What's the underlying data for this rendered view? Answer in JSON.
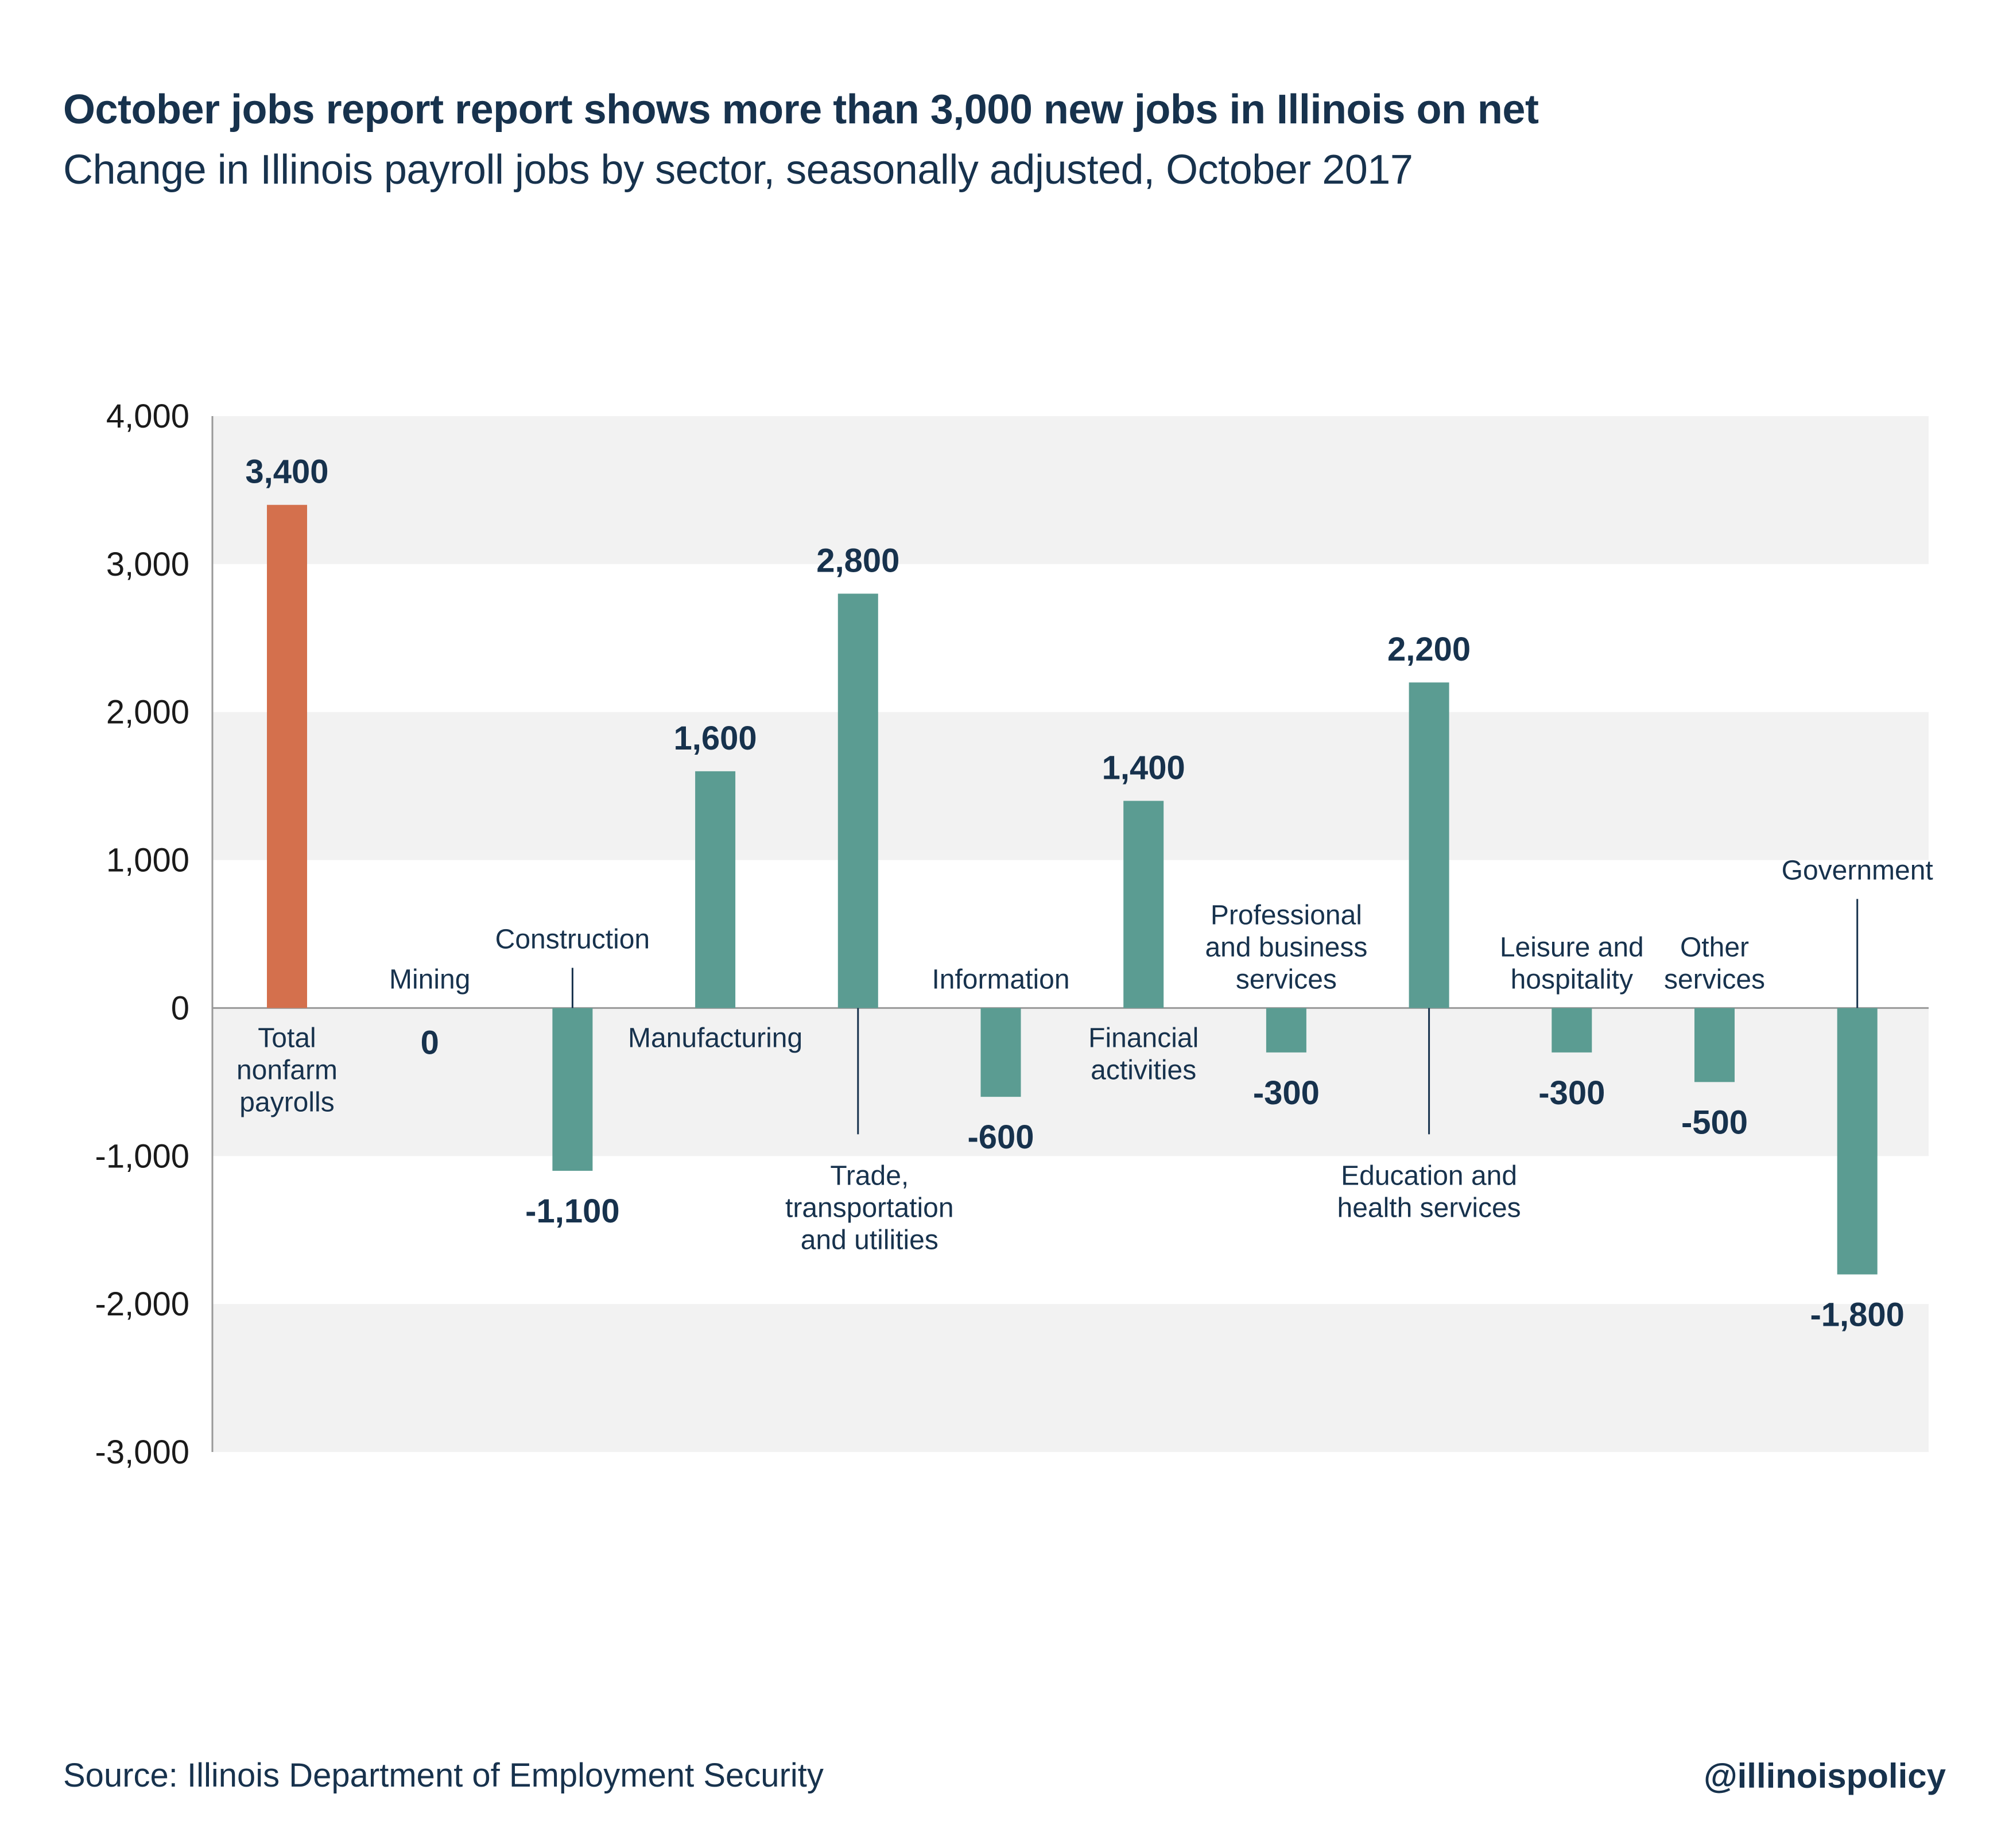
{
  "title": "October jobs report report shows more than 3,000 new jobs in Illinois on net",
  "subtitle": "Change in Illinois payroll jobs by sector, seasonally adjusted, October 2017",
  "source": "Source: Illinois Department of Employment Security",
  "handle": "@illinoispolicy",
  "colors": {
    "total": "#d4704d",
    "sector": "#5b9c92",
    "band": "#f2f2f2",
    "text": "#17324d",
    "axis": "#999999"
  },
  "chart_data": {
    "type": "bar",
    "categories": [
      "Total nonfarm payrolls",
      "Mining",
      "Construction",
      "Manufacturing",
      "Trade, transportation and utilities",
      "Information",
      "Financial activities",
      "Professional and business services",
      "Education and health services",
      "Leisure and hospitality",
      "Other services",
      "Government"
    ],
    "category_lines": [
      [
        "Total",
        "nonfarm",
        "payrolls"
      ],
      [
        "Mining"
      ],
      [
        "Construction"
      ],
      [
        "Manufacturing"
      ],
      [
        "Trade,",
        "transportation",
        "and utilities"
      ],
      [
        "Information"
      ],
      [
        "Financial",
        "activities"
      ],
      [
        "Professional",
        "and business",
        "services"
      ],
      [
        "Education and",
        "health services"
      ],
      [
        "Leisure and",
        "hospitality"
      ],
      [
        "Other",
        "services"
      ],
      [
        "Government"
      ]
    ],
    "values": [
      3400,
      0,
      -1100,
      1600,
      2800,
      -600,
      1400,
      -300,
      2200,
      -300,
      -500,
      -1800
    ],
    "value_labels": [
      "3,400",
      "0",
      "-1,100",
      "1,600",
      "2,800",
      "-600",
      "1,400",
      "-300",
      "2,200",
      "-300",
      "-500",
      "-1,800"
    ],
    "highlight_index": 0,
    "yticks": [
      4000,
      3000,
      2000,
      1000,
      0,
      -1000,
      -2000,
      -3000
    ],
    "ytick_labels": [
      "4,000",
      "3,000",
      "2,000",
      "1,000",
      "0",
      "-1,000",
      "-2,000",
      "-3,000"
    ],
    "ylim": [
      -3000,
      4000
    ],
    "grid": "alternating bands"
  }
}
